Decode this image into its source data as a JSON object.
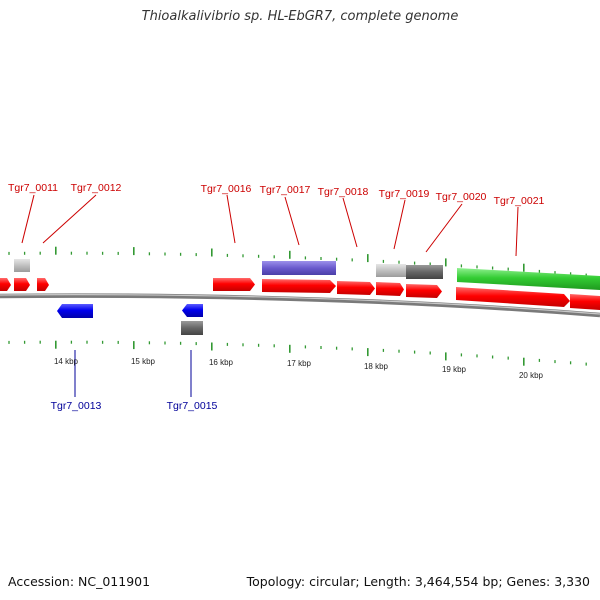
{
  "title": "Thioalkalivibrio sp. HL-EbGR7, complete genome",
  "footer": {
    "accession": "Accession: NC_011901",
    "summary": "Topology: circular; Length: 3,464,554 bp; Genes: 3,330"
  },
  "scale_labels": [
    "14 kbp",
    "15 kbp",
    "16 kbp",
    "17 kbp",
    "18 kbp",
    "19 kbp",
    "20 kbp"
  ],
  "colors": {
    "forward_label": "#cc0000",
    "reverse_label": "#000099",
    "tick": "#339933",
    "backbone": "#888888",
    "red_gene": "#ff0000",
    "blue_gene": "#0000ee",
    "purple_gene": "#6a5acd",
    "light_gray_gene": "#c0c0c0",
    "dark_gray_gene": "#666666",
    "green_gene": "#33cc33"
  },
  "genes": {
    "forward": [
      "Tgr7_0011",
      "Tgr7_0012",
      "Tgr7_0016",
      "Tgr7_0017",
      "Tgr7_0018",
      "Tgr7_0019",
      "Tgr7_0020",
      "Tgr7_0021"
    ],
    "reverse": [
      "Tgr7_0013",
      "Tgr7_0015"
    ]
  }
}
